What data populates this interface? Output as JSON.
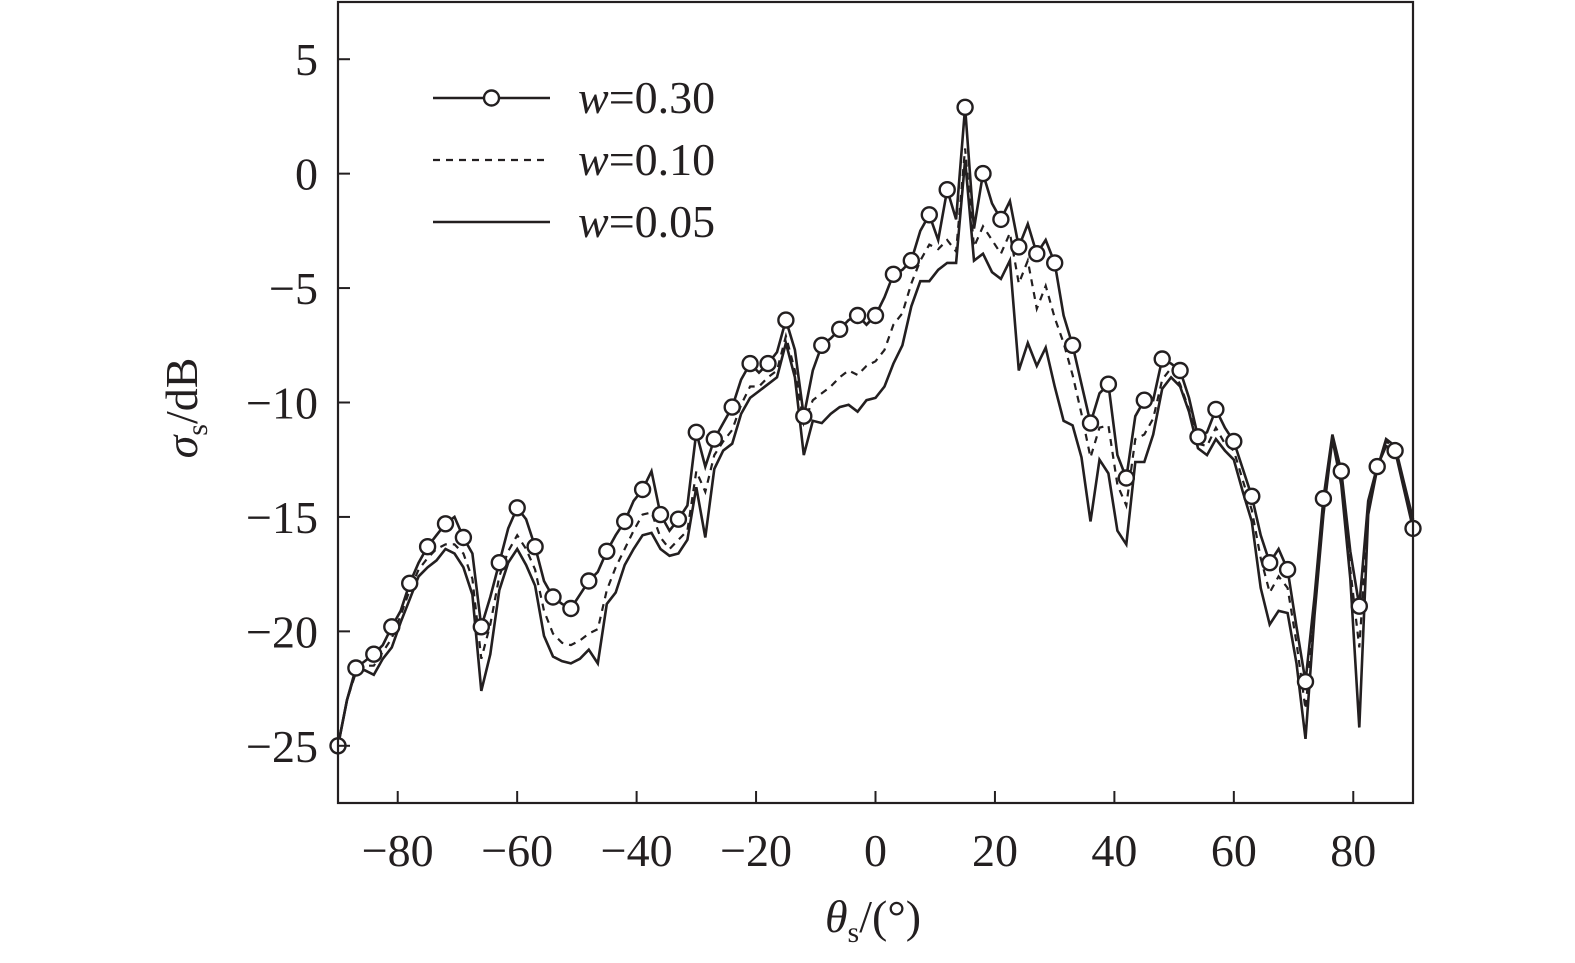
{
  "chart_data": {
    "type": "line",
    "xlabel": {
      "symbol": "θ",
      "sub": "s",
      "unit": "/(°)"
    },
    "ylabel": {
      "symbol": "σ",
      "sub": "s",
      "unit": "/dB"
    },
    "xlim": [
      -90,
      90
    ],
    "ylim": [
      -27.5,
      7.5
    ],
    "xticks": [
      -80,
      -60,
      -40,
      -20,
      0,
      20,
      40,
      60,
      80
    ],
    "yticks": [
      5,
      0,
      -5,
      -10,
      -15,
      -20,
      -25
    ],
    "xtick_labels": [
      "−80",
      "−60",
      "−40",
      "−20",
      "0",
      "20",
      "40",
      "60",
      "80"
    ],
    "ytick_labels": [
      "5",
      "0",
      "−5",
      "−10",
      "−15",
      "−20",
      "−25"
    ],
    "grid": false,
    "legend": {
      "position": "top-left"
    },
    "series": [
      {
        "name": "w=0.30",
        "name_var": "w",
        "name_val": "=0.30",
        "style": "solid-circle",
        "x": [
          -90,
          -87,
          -84,
          -81,
          -78,
          -75,
          -72,
          -69,
          -66,
          -63,
          -60,
          -57,
          -54,
          -51,
          -48,
          -45,
          -42,
          -39,
          -36,
          -33,
          -30,
          -27,
          -24,
          -21,
          -18,
          -15,
          -12,
          -9,
          -6,
          -3,
          0,
          3,
          6,
          9,
          12,
          15,
          18,
          21,
          24,
          27,
          30,
          33,
          36,
          39,
          42,
          45,
          48,
          51,
          54,
          57,
          60,
          63,
          66,
          69,
          72,
          75,
          78,
          81,
          84,
          87,
          90
        ],
        "y": [
          -25,
          -21.6,
          -21,
          -19.8,
          -17.9,
          -16.3,
          -15.3,
          -15.9,
          -19.8,
          -17,
          -14.6,
          -16.3,
          -18.5,
          -19,
          -17.8,
          -16.5,
          -15.2,
          -13.8,
          -14.9,
          -15.1,
          -11.3,
          -11.6,
          -10.2,
          -8.3,
          -8.3,
          -6.4,
          -10.6,
          -7.5,
          -6.8,
          -6.2,
          -6.2,
          -4.4,
          -3.8,
          -1.8,
          -0.7,
          2.9,
          0,
          -2,
          -3.2,
          -3.5,
          -3.9,
          -7.5,
          -10.9,
          -9.2,
          -13.3,
          -9.9,
          -8.1,
          -8.6,
          -11.5,
          -10.3,
          -11.7,
          -14.1,
          -17,
          -17.3,
          -22.2,
          -14.2,
          -13,
          -18.9,
          -12.8,
          -12.1,
          -15.5
        ],
        "trace_x": [
          -90,
          -88.5,
          -87,
          -85.5,
          -84,
          -82.5,
          -81,
          -79.5,
          -78,
          -76.5,
          -75,
          -73.5,
          -72,
          -70.5,
          -69,
          -67.5,
          -66,
          -64.5,
          -63,
          -61.5,
          -60,
          -58.5,
          -57,
          -55.5,
          -54,
          -52.5,
          -51,
          -49.5,
          -48,
          -46.5,
          -45,
          -43.5,
          -42,
          -40.5,
          -39,
          -37.5,
          -36,
          -34.5,
          -33,
          -31.5,
          -30,
          -28.5,
          -27,
          -25.5,
          -24,
          -22.5,
          -21,
          -19.5,
          -18,
          -16.5,
          -15,
          -13.5,
          -12,
          -10.5,
          -9,
          -7.5,
          -6,
          -4.5,
          -3,
          -1.5,
          0,
          1.5,
          3,
          4.5,
          6,
          7.5,
          9,
          10.5,
          12,
          13.5,
          15,
          16.5,
          18,
          19.5,
          21,
          22.5,
          24,
          25.5,
          27,
          28.5,
          30,
          31.5,
          33,
          34.5,
          36,
          37.5,
          39,
          40.5,
          42,
          43.5,
          45,
          46.5,
          48,
          49.5,
          51,
          52.5,
          54,
          55.5,
          57,
          58.5,
          60,
          61.5,
          63,
          64.5,
          66,
          67.5,
          69,
          70.5,
          72,
          73.5,
          75,
          76.5,
          78,
          79.5,
          81,
          82.5,
          84,
          85.5,
          87,
          88.5,
          90
        ],
        "trace_y": [
          -25,
          -23,
          -21.6,
          -21.3,
          -21,
          -20.6,
          -19.8,
          -19.1,
          -17.9,
          -17,
          -16.3,
          -15.8,
          -15.3,
          -15,
          -15.9,
          -16.6,
          -19.8,
          -18.5,
          -17,
          -15.5,
          -14.6,
          -15.1,
          -16.3,
          -17.8,
          -18.5,
          -18.8,
          -19,
          -18.4,
          -17.8,
          -17.4,
          -16.5,
          -15.8,
          -15.2,
          -14.3,
          -13.8,
          -13,
          -14.9,
          -15.6,
          -15.1,
          -14.5,
          -11.3,
          -12.8,
          -11.6,
          -10.9,
          -10.2,
          -9,
          -8.3,
          -8.7,
          -8.3,
          -7.8,
          -6.4,
          -7.7,
          -10.6,
          -8.6,
          -7.5,
          -7.2,
          -6.8,
          -6.4,
          -6.2,
          -6.6,
          -6.2,
          -5.4,
          -4.4,
          -4.2,
          -3.8,
          -2.5,
          -1.8,
          -2.9,
          -0.7,
          -2,
          2.9,
          -2.4,
          0,
          -1.3,
          -2,
          -1.2,
          -3.2,
          -2.2,
          -3.5,
          -2.9,
          -3.9,
          -6.2,
          -7.5,
          -9.2,
          -10.9,
          -9.6,
          -9.2,
          -12.3,
          -13.3,
          -10.6,
          -9.9,
          -9.9,
          -8.1,
          -8.3,
          -8.6,
          -9.8,
          -11.5,
          -11.3,
          -10.3,
          -11.1,
          -11.7,
          -12.9,
          -14.1,
          -15.8,
          -17,
          -16.4,
          -17.3,
          -19.8,
          -22.2,
          -18.5,
          -14.2,
          -11.4,
          -13,
          -16.5,
          -18.9,
          -14.3,
          -12.8,
          -11.9,
          -12.1,
          -13.8,
          -15.5
        ]
      },
      {
        "name": "w=0.10",
        "name_var": "w",
        "name_val": "=0.10",
        "style": "dashed",
        "x": [
          -90,
          -88.5,
          -87,
          -85.5,
          -84,
          -82.5,
          -81,
          -79.5,
          -78,
          -76.5,
          -75,
          -73.5,
          -72,
          -70.5,
          -69,
          -67.5,
          -66,
          -64.5,
          -63,
          -61.5,
          -60,
          -58.5,
          -57,
          -55.5,
          -54,
          -52.5,
          -51,
          -49.5,
          -48,
          -46.5,
          -45,
          -43.5,
          -42,
          -40.5,
          -39,
          -37.5,
          -36,
          -34.5,
          -33,
          -31.5,
          -30,
          -28.5,
          -27,
          -25.5,
          -24,
          -22.5,
          -21,
          -19.5,
          -18,
          -16.5,
          -15,
          -13.5,
          -12,
          -10.5,
          -9,
          -7.5,
          -6,
          -4.5,
          -3,
          -1.5,
          0,
          1.5,
          3,
          4.5,
          6,
          7.5,
          9,
          10.5,
          12,
          13.5,
          15,
          16.5,
          18,
          19.5,
          21,
          22.5,
          24,
          25.5,
          27,
          28.5,
          30,
          31.5,
          33,
          34.5,
          36,
          37.5,
          39,
          40.5,
          42,
          43.5,
          45,
          46.5,
          48,
          49.5,
          51,
          52.5,
          54,
          55.5,
          57,
          58.5,
          60,
          61.5,
          63,
          64.5,
          66,
          67.5,
          69,
          70.5,
          72,
          73.5,
          75,
          76.5,
          78,
          79.5,
          81,
          82.5,
          84,
          85.5,
          87,
          88.5,
          90
        ],
        "y": [
          -25,
          -23,
          -21.8,
          -21.5,
          -21.5,
          -20.9,
          -20.3,
          -19.3,
          -18.2,
          -17.3,
          -16.8,
          -16.4,
          -16.2,
          -16.2,
          -16.6,
          -17.7,
          -21.2,
          -19.7,
          -17.6,
          -16.5,
          -15.8,
          -16.4,
          -17.3,
          -19.1,
          -20.1,
          -20.5,
          -20.6,
          -20.4,
          -20.1,
          -19.9,
          -18.2,
          -17.2,
          -16.4,
          -15.6,
          -14.9,
          -14.8,
          -15.9,
          -16.4,
          -16,
          -15.6,
          -13,
          -13.9,
          -12.3,
          -11.7,
          -11.2,
          -10.1,
          -9.3,
          -9.3,
          -8.9,
          -8.6,
          -7.1,
          -8.6,
          -10.9,
          -9.9,
          -9.6,
          -9.3,
          -8.9,
          -8.6,
          -8.8,
          -8.4,
          -8.2,
          -7.7,
          -6.6,
          -6.1,
          -4.8,
          -3.8,
          -3.1,
          -3.3,
          -2.9,
          -3.4,
          1.1,
          -3.2,
          -2.3,
          -2.9,
          -3.5,
          -2.6,
          -4.8,
          -3.8,
          -5.9,
          -4.9,
          -6.3,
          -7.4,
          -8.8,
          -10.5,
          -12.4,
          -11.1,
          -11,
          -13.6,
          -14.5,
          -11.6,
          -11.4,
          -10.7,
          -9,
          -8.5,
          -9.2,
          -10.3,
          -11.8,
          -11.9,
          -11.1,
          -11.8,
          -12.1,
          -13.4,
          -14.7,
          -16.8,
          -18.3,
          -17.6,
          -18.1,
          -20.5,
          -23.4,
          -19.1,
          -14.6,
          -11.5,
          -13.5,
          -17.3,
          -20.7,
          -14.8,
          -12.9,
          -11.7,
          -12,
          -13.6,
          -15.1
        ]
      },
      {
        "name": "w=0.05",
        "name_var": "w",
        "name_val": "=0.05",
        "style": "solid",
        "x": [
          -90,
          -88.5,
          -87,
          -85.5,
          -84,
          -82.5,
          -81,
          -79.5,
          -78,
          -76.5,
          -75,
          -73.5,
          -72,
          -70.5,
          -69,
          -67.5,
          -66,
          -64.5,
          -63,
          -61.5,
          -60,
          -58.5,
          -57,
          -55.5,
          -54,
          -52.5,
          -51,
          -49.5,
          -48,
          -46.5,
          -45,
          -43.5,
          -42,
          -40.5,
          -39,
          -37.5,
          -36,
          -34.5,
          -33,
          -31.5,
          -30,
          -28.5,
          -27,
          -25.5,
          -24,
          -22.5,
          -21,
          -19.5,
          -18,
          -16.5,
          -15,
          -13.5,
          -12,
          -10.5,
          -9,
          -7.5,
          -6,
          -4.5,
          -3,
          -1.5,
          0,
          1.5,
          3,
          4.5,
          6,
          7.5,
          9,
          10.5,
          12,
          13.5,
          15,
          16.5,
          18,
          19.5,
          21,
          22.5,
          24,
          25.5,
          27,
          28.5,
          30,
          31.5,
          33,
          34.5,
          36,
          37.5,
          39,
          40.5,
          42,
          43.5,
          45,
          46.5,
          48,
          49.5,
          51,
          52.5,
          54,
          55.5,
          57,
          58.5,
          60,
          61.5,
          63,
          64.5,
          66,
          67.5,
          69,
          70.5,
          72,
          73.5,
          75,
          76.5,
          78,
          79.5,
          81,
          82.5,
          84,
          85.5,
          87,
          88.5,
          90
        ],
        "y": [
          -25,
          -23,
          -21.7,
          -21.7,
          -21.9,
          -21.2,
          -20.7,
          -19.6,
          -18.6,
          -17.6,
          -17.2,
          -16.9,
          -16.4,
          -16.6,
          -17.2,
          -18.4,
          -22.6,
          -21,
          -18.2,
          -17,
          -16.4,
          -17.1,
          -18,
          -20.2,
          -21.1,
          -21.3,
          -21.4,
          -21.2,
          -20.8,
          -21.4,
          -18.8,
          -18.3,
          -17.1,
          -16.4,
          -15.8,
          -15.7,
          -16.4,
          -16.7,
          -16.6,
          -16,
          -13.7,
          -15.9,
          -12.9,
          -12.1,
          -11.8,
          -10.5,
          -9.8,
          -9.5,
          -9.2,
          -8.9,
          -7.4,
          -8.9,
          -12.3,
          -10.8,
          -10.9,
          -10.5,
          -10.2,
          -10.1,
          -10.4,
          -9.9,
          -9.8,
          -9.3,
          -8.3,
          -7.5,
          -5.8,
          -4.7,
          -4.7,
          -4.2,
          -3.9,
          -3.9,
          0.6,
          -3.8,
          -3.5,
          -4.3,
          -4.6,
          -3.8,
          -8.6,
          -7.4,
          -8.4,
          -7.6,
          -9.3,
          -10.8,
          -11,
          -12.4,
          -15.2,
          -12.5,
          -13.1,
          -15.6,
          -16.2,
          -12.6,
          -12.6,
          -11.4,
          -9.4,
          -8.9,
          -9.3,
          -10.4,
          -12,
          -12.3,
          -11.6,
          -12.1,
          -12.5,
          -13.9,
          -15.2,
          -18.1,
          -19.7,
          -19.1,
          -19.2,
          -21.4,
          -24.7,
          -19.3,
          -14.9,
          -11.6,
          -13.6,
          -17.7,
          -24.2,
          -14.9,
          -12.9,
          -11.6,
          -11.9,
          -13.5,
          -15.1
        ]
      }
    ]
  }
}
